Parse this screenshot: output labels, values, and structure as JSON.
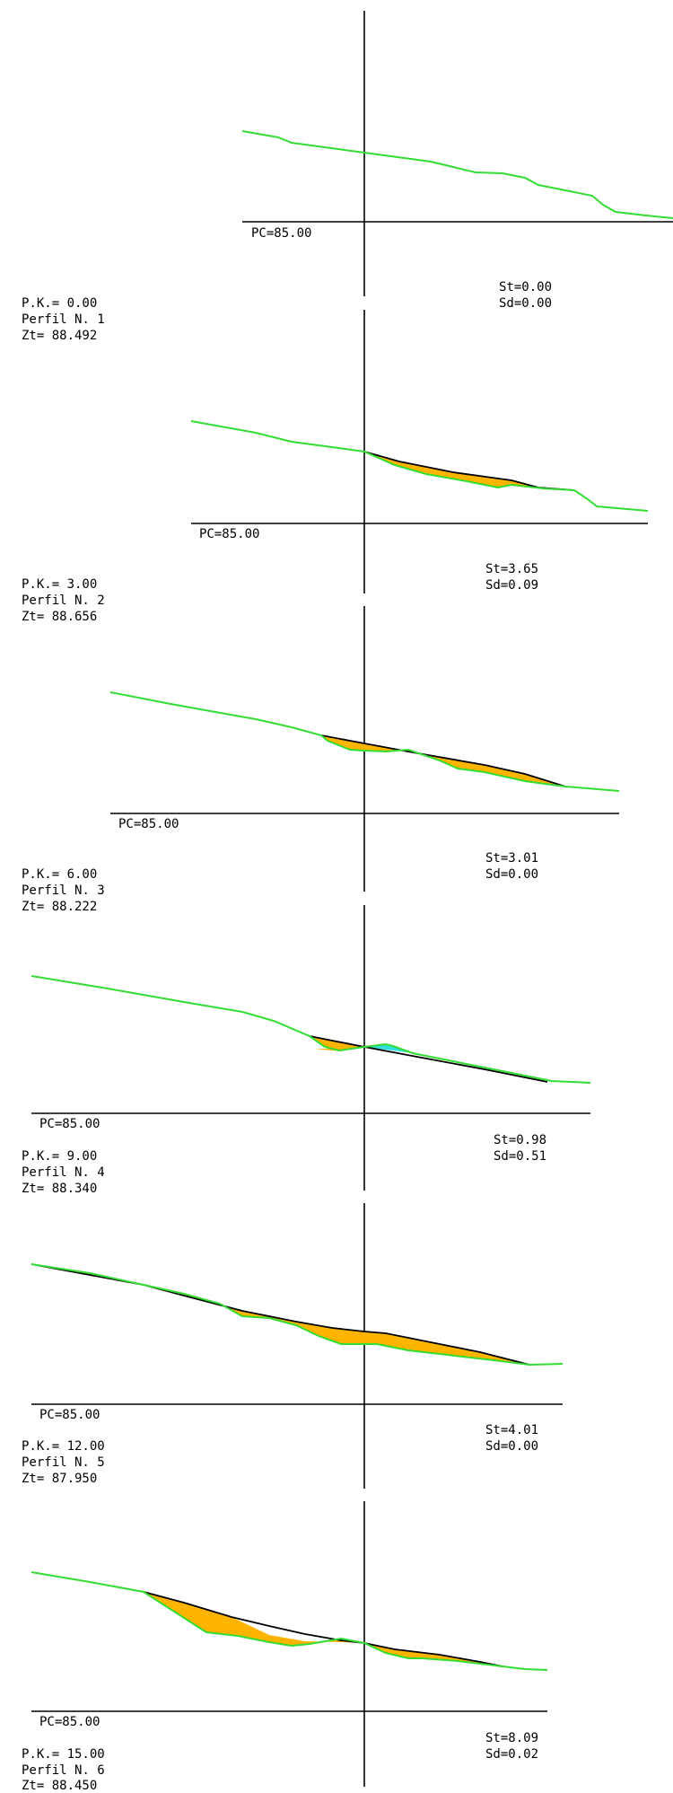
{
  "profiles": [
    {
      "pc_label": "PC=85.00",
      "pk_label": "P.K.=  0.00",
      "perfil_label": "Perfil N. 1",
      "zt_label": "Zt= 88.492",
      "st_label": "St=0.00",
      "sd_label": "Sd=0.00"
    },
    {
      "pc_label": "PC=85.00",
      "pk_label": "P.K.=  3.00",
      "perfil_label": "Perfil N. 2",
      "zt_label": "Zt= 88.656",
      "st_label": "St=3.65",
      "sd_label": "Sd=0.09"
    },
    {
      "pc_label": "PC=85.00",
      "pk_label": "P.K.=  6.00",
      "perfil_label": "Perfil N. 3",
      "zt_label": "Zt= 88.222",
      "st_label": "St=3.01",
      "sd_label": "Sd=0.00"
    },
    {
      "pc_label": "PC=85.00",
      "pk_label": "P.K.=  9.00",
      "perfil_label": "Perfil N. 4",
      "zt_label": "Zt= 88.340",
      "st_label": "St=0.98",
      "sd_label": "Sd=0.51"
    },
    {
      "pc_label": "PC=85.00",
      "pk_label": "P.K.= 12.00",
      "perfil_label": "Perfil N. 5",
      "zt_label": "Zt= 87.950",
      "st_label": "St=4.01",
      "sd_label": "Sd=0.00"
    },
    {
      "pc_label": "PC=85.00",
      "pk_label": "P.K.= 15.00",
      "perfil_label": "Perfil N. 6",
      "zt_label": "Zt= 88.450",
      "st_label": "St=8.09",
      "sd_label": "Sd=0.02"
    }
  ],
  "colors": {
    "terrain": "#33dd33",
    "design_line": "#000000",
    "cut_fill": "#ffb400",
    "fill_area": "#33dddd",
    "axis": "#000000",
    "background": "#ffffff"
  }
}
